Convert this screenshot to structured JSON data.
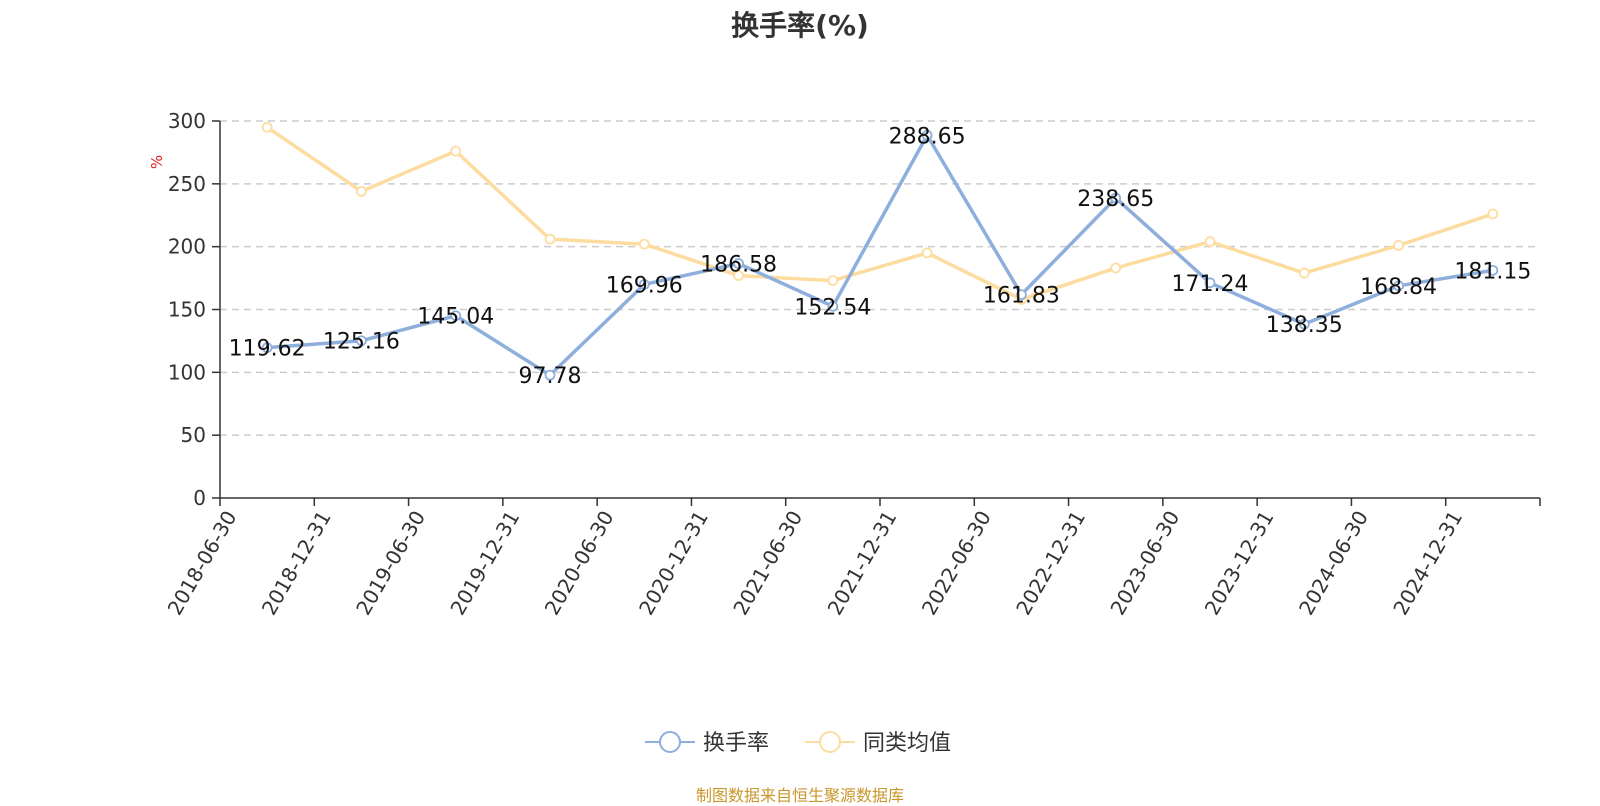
{
  "chart_data": {
    "type": "line",
    "title": "换手率(%)",
    "ylabel": "%",
    "xlabel": "",
    "ylim": [
      0,
      300
    ],
    "yticks": [
      0,
      50,
      100,
      150,
      200,
      250,
      300
    ],
    "grid": true,
    "legend_position": "bottom",
    "categories": [
      "2018-06-30",
      "2018-12-31",
      "2019-06-30",
      "2019-12-31",
      "2020-06-30",
      "2020-12-31",
      "2021-06-30",
      "2021-12-31",
      "2022-06-30",
      "2022-12-31",
      "2023-06-30",
      "2023-12-31",
      "2024-06-30",
      "2024-12-31"
    ],
    "series": [
      {
        "name": "换手率",
        "color": "#8eaedc",
        "values": [
          119.62,
          125.16,
          145.04,
          97.78,
          169.96,
          186.58,
          152.54,
          288.65,
          161.83,
          238.65,
          171.24,
          138.35,
          168.84,
          181.15
        ],
        "data_labels": [
          "119.62",
          "125.16",
          "145.04",
          "97.78",
          "169.96",
          "186.58",
          "152.54",
          "288.65",
          "161.83",
          "238.65",
          "171.24",
          "138.35",
          "168.84",
          "181.15"
        ]
      },
      {
        "name": "同类均值",
        "color": "#fddc9f",
        "values": [
          295,
          244,
          276,
          206,
          202,
          177,
          173,
          195,
          158,
          183,
          204,
          179,
          201,
          226
        ]
      }
    ],
    "source_note": "制图数据来自恒生聚源数据库"
  }
}
